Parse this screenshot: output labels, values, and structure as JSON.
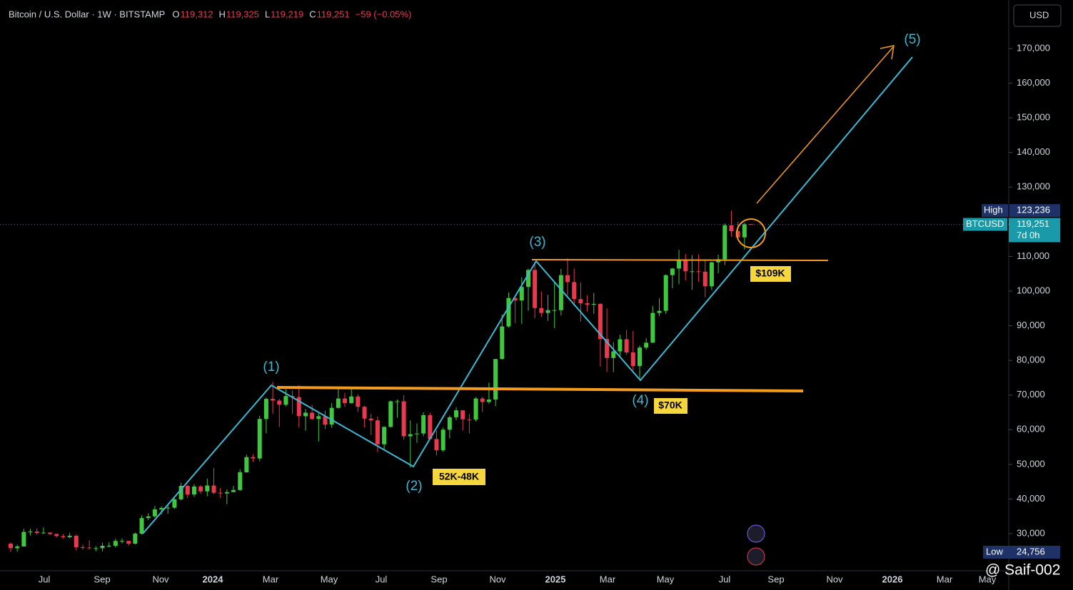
{
  "chart_data": {
    "type": "candlestick",
    "title": "Bitcoin / U.S. Dollar · 1W · BITSTAMP",
    "ohlc": [
      {
        "key": "O",
        "value": "119,312"
      },
      {
        "key": "H",
        "value": "119,325"
      },
      {
        "key": "L",
        "value": "119,219"
      },
      {
        "key": "C",
        "value": "119,251"
      }
    ],
    "change": "−59 (−0.05%)",
    "currency": "USD",
    "up_color": "#3fc83f",
    "down_color": "#e8394f",
    "ylim": [
      19300,
      184000
    ],
    "yticks": [
      {
        "value": 30000,
        "label": "30,000"
      },
      {
        "value": 40000,
        "label": "40,000"
      },
      {
        "value": 50000,
        "label": "50,000"
      },
      {
        "value": 60000,
        "label": "60,000"
      },
      {
        "value": 70000,
        "label": "70,000"
      },
      {
        "value": 80000,
        "label": "80,000"
      },
      {
        "value": 90000,
        "label": "90,000"
      },
      {
        "value": 100000,
        "label": "100,000"
      },
      {
        "value": 110000,
        "label": "110,000"
      },
      {
        "value": 120000,
        "label": "120,000"
      },
      {
        "value": 130000,
        "label": "130,000"
      },
      {
        "value": 140000,
        "label": "140,000"
      },
      {
        "value": 150000,
        "label": "150,000"
      },
      {
        "value": 160000,
        "label": "160,000"
      },
      {
        "value": 170000,
        "label": "170,000"
      }
    ],
    "xticks": [
      "Jul",
      "Sep",
      "Nov",
      "2024",
      "Mar",
      "May",
      "Jul",
      "Sep",
      "Nov",
      "2025",
      "Mar",
      "May",
      "Jul",
      "Sep",
      "Nov",
      "2026",
      "Mar",
      "May"
    ],
    "candles": [
      [
        27100,
        27400,
        24756,
        25800
      ],
      [
        25800,
        26800,
        24800,
        26300
      ],
      [
        26300,
        31400,
        26300,
        30500
      ],
      [
        30500,
        31400,
        29500,
        30600
      ],
      [
        30600,
        31500,
        29700,
        30200
      ],
      [
        30200,
        31800,
        29900,
        30300
      ],
      [
        30300,
        30400,
        29600,
        29900
      ],
      [
        29900,
        30000,
        28900,
        29300
      ],
      [
        29300,
        29900,
        28600,
        29000
      ],
      [
        29000,
        30200,
        28700,
        29400
      ],
      [
        29400,
        29700,
        25200,
        26100
      ],
      [
        26100,
        26800,
        25400,
        26000
      ],
      [
        26000,
        28100,
        25400,
        25800
      ],
      [
        25800,
        26400,
        24900,
        25800
      ],
      [
        25800,
        27400,
        24900,
        26500
      ],
      [
        26500,
        27500,
        26000,
        26500
      ],
      [
        26500,
        28600,
        26000,
        27900
      ],
      [
        27900,
        28600,
        27200,
        27900
      ],
      [
        27900,
        27900,
        26600,
        27100
      ],
      [
        27100,
        30300,
        26900,
        30000
      ],
      [
        30000,
        35300,
        29800,
        34500
      ],
      [
        34500,
        35900,
        33900,
        35000
      ],
      [
        35000,
        38000,
        34600,
        37000
      ],
      [
        37000,
        37900,
        35600,
        37400
      ],
      [
        37400,
        38400,
        35700,
        37500
      ],
      [
        37500,
        40200,
        37200,
        39900
      ],
      [
        39900,
        44700,
        39600,
        43800
      ],
      [
        43800,
        44100,
        40300,
        41300
      ],
      [
        41300,
        44300,
        40600,
        43600
      ],
      [
        43600,
        44000,
        41500,
        42200
      ],
      [
        42200,
        45900,
        40800,
        43900
      ],
      [
        43900,
        49000,
        41500,
        41800
      ],
      [
        41800,
        43200,
        40300,
        41600
      ],
      [
        41600,
        42800,
        38500,
        42000
      ],
      [
        42000,
        43800,
        41900,
        42600
      ],
      [
        42600,
        48600,
        42300,
        47700
      ],
      [
        47700,
        52800,
        47600,
        52100
      ],
      [
        52100,
        52900,
        50700,
        51700
      ],
      [
        51700,
        64000,
        50900,
        63100
      ],
      [
        63100,
        69300,
        59000,
        68900
      ],
      [
        68900,
        73800,
        64600,
        68400
      ],
      [
        68400,
        68900,
        60800,
        67200
      ],
      [
        67200,
        71700,
        66800,
        69700
      ],
      [
        69700,
        71300,
        64500,
        69400
      ],
      [
        69400,
        72800,
        60700,
        63900
      ],
      [
        63900,
        66000,
        59700,
        64900
      ],
      [
        64900,
        67200,
        62800,
        63100
      ],
      [
        63100,
        64700,
        56600,
        63900
      ],
      [
        63900,
        65500,
        60200,
        61500
      ],
      [
        61500,
        67700,
        60600,
        66300
      ],
      [
        66300,
        71900,
        66100,
        69000
      ],
      [
        69000,
        70600,
        66600,
        67700
      ],
      [
        67700,
        72000,
        67500,
        69600
      ],
      [
        69600,
        70200,
        65100,
        66600
      ],
      [
        66600,
        66900,
        60700,
        63200
      ],
      [
        63200,
        64600,
        58500,
        62700
      ],
      [
        62700,
        63800,
        53500,
        55800
      ],
      [
        55800,
        61000,
        54300,
        60800
      ],
      [
        60800,
        68400,
        60700,
        68200
      ],
      [
        68200,
        68700,
        63500,
        68200
      ],
      [
        68200,
        70000,
        57100,
        58100
      ],
      [
        58100,
        62700,
        49000,
        58700
      ],
      [
        58700,
        61800,
        56200,
        58900
      ],
      [
        58900,
        65000,
        58100,
        64200
      ],
      [
        64200,
        64900,
        57200,
        57300
      ],
      [
        57300,
        59800,
        52600,
        54100
      ],
      [
        54100,
        60600,
        53600,
        60000
      ],
      [
        60000,
        64100,
        57500,
        63600
      ],
      [
        63600,
        66500,
        62700,
        65600
      ],
      [
        65600,
        65600,
        59800,
        63000
      ],
      [
        63000,
        64500,
        58900,
        62900
      ],
      [
        62900,
        69400,
        62400,
        69000
      ],
      [
        69000,
        69500,
        65100,
        68000
      ],
      [
        68000,
        73600,
        67500,
        68700
      ],
      [
        68700,
        80400,
        66800,
        80400
      ],
      [
        80400,
        93300,
        80200,
        89800
      ],
      [
        89800,
        99600,
        89400,
        98000
      ],
      [
        98000,
        98900,
        90800,
        97300
      ],
      [
        97300,
        104000,
        90500,
        101200
      ],
      [
        101200,
        106500,
        94300,
        106100
      ],
      [
        106100,
        108300,
        92200,
        95100
      ],
      [
        95100,
        99900,
        92500,
        93700
      ],
      [
        93700,
        98900,
        91400,
        94500
      ],
      [
        94500,
        102700,
        89300,
        94500
      ],
      [
        94500,
        106400,
        93000,
        104600
      ],
      [
        104600,
        109400,
        98700,
        102600
      ],
      [
        102600,
        106500,
        96200,
        97700
      ],
      [
        97700,
        102500,
        91200,
        96500
      ],
      [
        96500,
        98800,
        94100,
        96100
      ],
      [
        96100,
        99500,
        93400,
        96300
      ],
      [
        96300,
        96500,
        78200,
        86200
      ],
      [
        86200,
        95000,
        76700,
        80700
      ],
      [
        80700,
        85300,
        76600,
        82600
      ],
      [
        82600,
        87400,
        81200,
        86100
      ],
      [
        86100,
        88800,
        81600,
        82300
      ],
      [
        82300,
        88500,
        77100,
        78400
      ],
      [
        78400,
        84300,
        74400,
        83700
      ],
      [
        83700,
        86400,
        83100,
        85100
      ],
      [
        85100,
        95700,
        85100,
        93700
      ],
      [
        93700,
        97900,
        92800,
        94300
      ],
      [
        94300,
        104800,
        93400,
        104600
      ],
      [
        104600,
        106700,
        100800,
        106500
      ],
      [
        106500,
        111900,
        102000,
        109000
      ],
      [
        109000,
        110700,
        103100,
        105700
      ],
      [
        105700,
        110400,
        100400,
        105700
      ],
      [
        105700,
        110600,
        102700,
        105600
      ],
      [
        105600,
        108900,
        98200,
        101400
      ],
      [
        101400,
        108500,
        100300,
        108300
      ],
      [
        108300,
        110500,
        105200,
        109200
      ],
      [
        109200,
        119500,
        107500,
        119000
      ],
      [
        119000,
        123236,
        115700,
        117300
      ],
      [
        117300,
        120000,
        114800,
        115500
      ],
      [
        115500,
        119700,
        112000,
        119312
      ],
      [
        119312,
        119325,
        119219,
        119251
      ]
    ],
    "high_label": "High",
    "high": {
      "value": 123236,
      "label": "123,236"
    },
    "low_label": "Low",
    "low": {
      "value": 24756,
      "label": "24,756"
    },
    "symbol": "BTCUSD",
    "last": {
      "value": 119251,
      "label": "119,251"
    },
    "countdown": "7d 0h",
    "annotations": {
      "waves": [
        "(1)",
        "(2)",
        "(3)",
        "(4)",
        "(5)"
      ],
      "levels": [
        "52K-48K",
        "$109K",
        "$70K"
      ]
    },
    "watermark": "@ Saif-002"
  }
}
